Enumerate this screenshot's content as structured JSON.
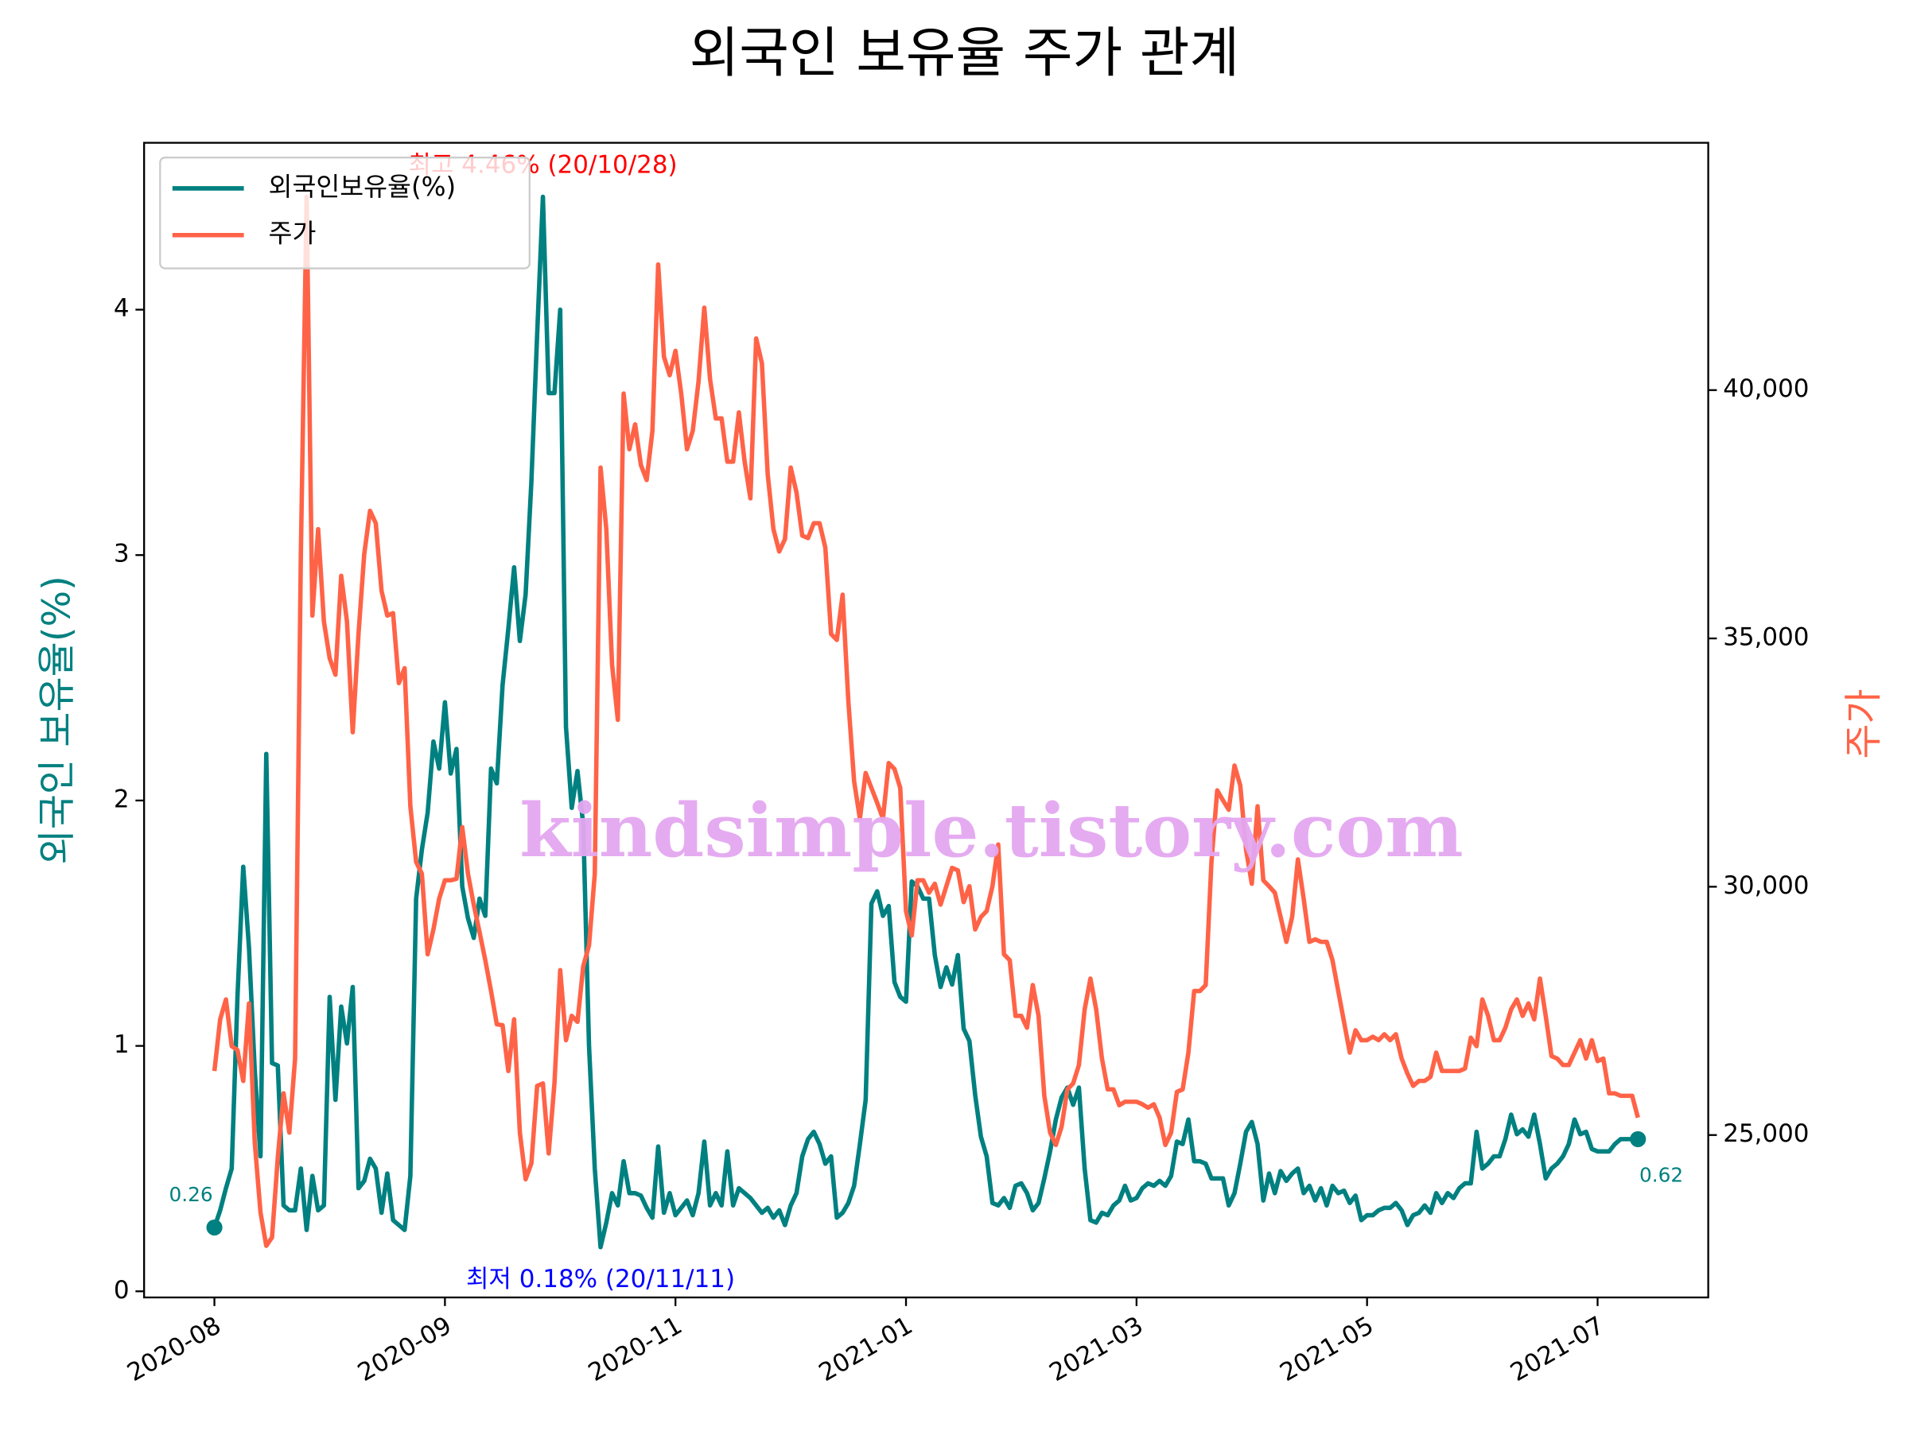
{
  "chart_data": {
    "type": "line",
    "title": "외국인 보유율 주가 관계",
    "ylabel": "외국인 보유율(%)",
    "y2label": "주가",
    "watermark": "kindsimple.tistory.com",
    "legend": "upper left",
    "x": [
      0,
      1,
      2,
      3,
      4,
      5,
      6,
      7,
      8,
      9,
      10,
      11,
      12,
      13,
      14,
      15,
      16,
      17,
      18,
      19,
      20,
      21,
      22,
      23,
      24,
      25,
      26,
      27,
      28,
      29,
      30,
      31,
      32,
      33,
      34,
      35,
      36,
      37,
      38,
      39,
      40,
      41,
      42,
      43,
      44,
      45,
      46,
      47,
      48,
      49,
      50,
      51,
      52,
      53,
      54,
      55,
      56,
      57,
      58,
      59,
      60,
      61,
      62,
      63,
      64,
      65,
      66,
      67,
      68,
      69,
      70,
      71,
      72,
      73,
      74,
      75,
      76,
      77,
      78,
      79,
      80,
      81,
      82,
      83,
      84,
      85,
      86,
      87,
      88,
      89,
      90,
      91,
      92,
      93,
      94,
      95,
      96,
      97,
      98,
      99,
      100,
      101,
      102,
      103,
      104,
      105,
      106,
      107,
      108,
      109,
      110,
      111,
      112,
      113,
      114,
      115,
      116,
      117,
      118,
      119,
      120,
      121,
      122,
      123,
      124,
      125,
      126,
      127,
      128,
      129,
      130,
      131,
      132,
      133,
      134,
      135,
      136,
      137,
      138,
      139,
      140,
      141,
      142,
      143,
      144,
      145,
      146,
      147,
      148,
      149,
      150,
      151,
      152,
      153,
      154,
      155,
      156,
      157,
      158,
      159,
      160,
      161,
      162,
      163,
      164,
      165,
      166,
      167,
      168,
      169,
      170,
      171,
      172,
      173,
      174,
      175,
      176,
      177,
      178,
      179,
      180,
      181,
      182,
      183,
      184,
      185,
      186,
      187,
      188,
      189,
      190,
      191,
      192,
      193,
      194,
      195,
      196,
      197,
      198,
      199,
      200,
      201,
      202,
      203,
      204,
      205,
      206,
      207,
      208,
      209,
      210,
      211,
      212,
      213,
      214,
      215,
      216,
      217,
      218,
      219,
      220,
      221,
      222,
      223,
      224,
      225,
      226,
      227,
      228,
      229,
      230,
      231,
      232,
      233,
      234,
      235,
      236,
      237,
      238,
      239,
      240,
      241,
      242,
      243,
      244,
      245,
      246,
      247
    ],
    "xlim": [
      -12.2,
      259.2
    ],
    "xticks": [
      {
        "value": 0,
        "label": "2020-08"
      },
      {
        "value": 40,
        "label": "2020-09"
      },
      {
        "value": 80,
        "label": "2020-11"
      },
      {
        "value": 120,
        "label": "2021-01"
      },
      {
        "value": 160,
        "label": "2021-03"
      },
      {
        "value": 200,
        "label": "2021-05"
      },
      {
        "value": 240,
        "label": "2021-07"
      }
    ],
    "ylim": [
      -0.025,
      4.68
    ],
    "yticks": [
      0,
      1,
      2,
      3,
      4
    ],
    "y2lim": [
      21730,
      44980
    ],
    "y2ticks": [
      {
        "value": 25000,
        "label": "25,000"
      },
      {
        "value": 30000,
        "label": "30,000"
      },
      {
        "value": 35000,
        "label": "35,000"
      },
      {
        "value": 40000,
        "label": "40,000"
      }
    ],
    "series": [
      {
        "name": "외국인보유율(%)",
        "color": "#008080",
        "axis": "y",
        "values": [
          0.26,
          0.33,
          0.42,
          0.5,
          1.2,
          1.73,
          1.4,
          0.9,
          0.55,
          2.19,
          0.93,
          0.92,
          0.35,
          0.33,
          0.33,
          0.5,
          0.25,
          0.47,
          0.33,
          0.35,
          1.2,
          0.78,
          1.16,
          1.01,
          1.24,
          0.42,
          0.45,
          0.54,
          0.5,
          0.32,
          0.48,
          0.29,
          0.27,
          0.25,
          0.47,
          1.6,
          1.8,
          1.95,
          2.24,
          2.13,
          2.4,
          2.11,
          2.21,
          1.65,
          1.52,
          1.44,
          1.6,
          1.53,
          2.13,
          2.07,
          2.47,
          2.7,
          2.95,
          2.65,
          2.84,
          3.3,
          3.9,
          4.46,
          3.66,
          3.66,
          4.0,
          2.3,
          1.97,
          2.12,
          1.9,
          1.0,
          0.5,
          0.18,
          0.28,
          0.4,
          0.35,
          0.53,
          0.4,
          0.4,
          0.39,
          0.34,
          0.3,
          0.59,
          0.32,
          0.4,
          0.31,
          0.34,
          0.37,
          0.31,
          0.4,
          0.61,
          0.35,
          0.4,
          0.35,
          0.57,
          0.35,
          0.42,
          0.4,
          0.38,
          0.35,
          0.32,
          0.34,
          0.3,
          0.33,
          0.27,
          0.35,
          0.4,
          0.55,
          0.62,
          0.65,
          0.6,
          0.52,
          0.55,
          0.3,
          0.32,
          0.36,
          0.43,
          0.6,
          0.78,
          1.58,
          1.63,
          1.53,
          1.57,
          1.26,
          1.2,
          1.18,
          1.67,
          1.65,
          1.6,
          1.6,
          1.37,
          1.24,
          1.32,
          1.25,
          1.37,
          1.07,
          1.02,
          0.8,
          0.63,
          0.55,
          0.36,
          0.35,
          0.38,
          0.34,
          0.43,
          0.44,
          0.4,
          0.33,
          0.36,
          0.46,
          0.57,
          0.7,
          0.79,
          0.83,
          0.76,
          0.83,
          0.5,
          0.29,
          0.28,
          0.32,
          0.31,
          0.35,
          0.37,
          0.43,
          0.37,
          0.38,
          0.42,
          0.44,
          0.43,
          0.45,
          0.43,
          0.47,
          0.61,
          0.6,
          0.7,
          0.53,
          0.53,
          0.52,
          0.46,
          0.46,
          0.46,
          0.35,
          0.4,
          0.52,
          0.65,
          0.69,
          0.6,
          0.37,
          0.48,
          0.4,
          0.49,
          0.45,
          0.48,
          0.5,
          0.4,
          0.43,
          0.37,
          0.42,
          0.35,
          0.43,
          0.4,
          0.41,
          0.36,
          0.39,
          0.29,
          0.31,
          0.31,
          0.33,
          0.34,
          0.34,
          0.36,
          0.33,
          0.27,
          0.31,
          0.32,
          0.35,
          0.32,
          0.4,
          0.36,
          0.4,
          0.38,
          0.42,
          0.44,
          0.44,
          0.65,
          0.5,
          0.52,
          0.55,
          0.55,
          0.62,
          0.72,
          0.64,
          0.66,
          0.63,
          0.72,
          0.6,
          0.46,
          0.5,
          0.52,
          0.55,
          0.6,
          0.7,
          0.64,
          0.65,
          0.58,
          0.57,
          0.57,
          0.57,
          0.6,
          0.62,
          0.62,
          0.62,
          0.62
        ],
        "end_labels": [
          "0.26",
          "0.62"
        ]
      },
      {
        "name": "주가",
        "color": "#ff6347",
        "axis": "y2",
        "values": [
          26290,
          27330,
          27730,
          26790,
          26710,
          26090,
          27650,
          24850,
          23440,
          22770,
          22940,
          24550,
          25840,
          25050,
          26540,
          36700,
          43890,
          35460,
          37200,
          35340,
          34600,
          34270,
          36260,
          35340,
          33110,
          35090,
          36700,
          37570,
          37320,
          35960,
          35460,
          35510,
          34100,
          34400,
          31620,
          30500,
          30260,
          28640,
          29140,
          29760,
          30130,
          30130,
          30160,
          31200,
          30260,
          29640,
          29090,
          28520,
          27900,
          27230,
          27210,
          26290,
          27330,
          25050,
          24110,
          24430,
          25990,
          26040,
          24630,
          26040,
          28320,
          26910,
          27400,
          27280,
          28400,
          28820,
          30260,
          38440,
          37200,
          34470,
          33360,
          39930,
          38810,
          39310,
          38490,
          38190,
          39180,
          42530,
          40670,
          40300,
          40790,
          39930,
          38810,
          39180,
          40170,
          41660,
          40220,
          39430,
          39430,
          38560,
          38560,
          39550,
          38560,
          37820,
          41040,
          40540,
          38310,
          37200,
          36750,
          37000,
          38440,
          37940,
          37070,
          37020,
          37320,
          37320,
          36830,
          35090,
          34970,
          35880,
          33730,
          32120,
          31370,
          32290,
          31990,
          31690,
          31370,
          32490,
          32370,
          31990,
          29510,
          29020,
          30130,
          30130,
          29880,
          30060,
          29640,
          30010,
          30380,
          30330,
          29690,
          30010,
          29140,
          29390,
          29510,
          30010,
          30850,
          28640,
          28520,
          27400,
          27400,
          27160,
          28020,
          27400,
          25790,
          25050,
          24800,
          25170,
          25920,
          26040,
          26410,
          27530,
          28150,
          27530,
          26540,
          25920,
          25920,
          25600,
          25670,
          25670,
          25670,
          25620,
          25550,
          25620,
          25350,
          24800,
          25050,
          25870,
          25920,
          26660,
          27900,
          27900,
          28020,
          30500,
          31940,
          31740,
          31550,
          32440,
          32040,
          30750,
          30060,
          31620,
          30130,
          30010,
          29880,
          29390,
          28890,
          29390,
          30550,
          29760,
          28890,
          28940,
          28890,
          28890,
          28520,
          27900,
          27280,
          26660,
          27110,
          26910,
          26910,
          26980,
          26910,
          27030,
          26910,
          27030,
          26540,
          26240,
          25990,
          26090,
          26090,
          26170,
          26660,
          26290,
          26290,
          26290,
          26290,
          26340,
          26960,
          26790,
          27730,
          27400,
          26910,
          26910,
          27160,
          27530,
          27730,
          27400,
          27650,
          27330,
          28150,
          27400,
          26590,
          26540,
          26410,
          26410,
          26660,
          26910,
          26540,
          26910,
          26490,
          26540,
          25840,
          25840,
          25790,
          25790,
          25790,
          25350
        ]
      }
    ],
    "annotations": [
      {
        "text": "최고 4.46% (20/10/28)",
        "color": "#ff0000",
        "at": "max"
      },
      {
        "text": "최저 0.18% (20/11/11)",
        "color": "#0000ff",
        "at": "min"
      }
    ]
  }
}
